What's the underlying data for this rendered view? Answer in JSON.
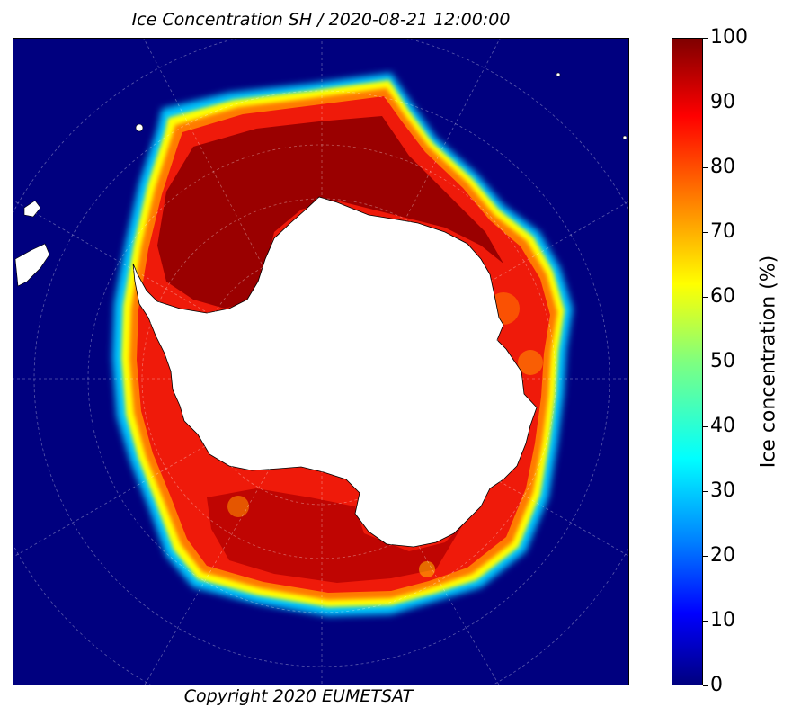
{
  "title": "Ice Concentration SH / 2020-08-21 12:00:00",
  "credit": "Copyright 2020 EUMETSAT",
  "colorbar": {
    "label": "Ice concentration (%)",
    "ticks": [
      "0",
      "10",
      "20",
      "30",
      "40",
      "50",
      "60",
      "70",
      "80",
      "90",
      "100"
    ],
    "min": 0,
    "max": 100,
    "colormap": "jet"
  },
  "colors": {
    "open_water": "#00007f",
    "ice_edge_low": "#00ffff",
    "ice_mid": "#ff7f00",
    "ice_high": "#ff0000",
    "ice_full": "#7f0000",
    "land": "#ffffff"
  }
}
